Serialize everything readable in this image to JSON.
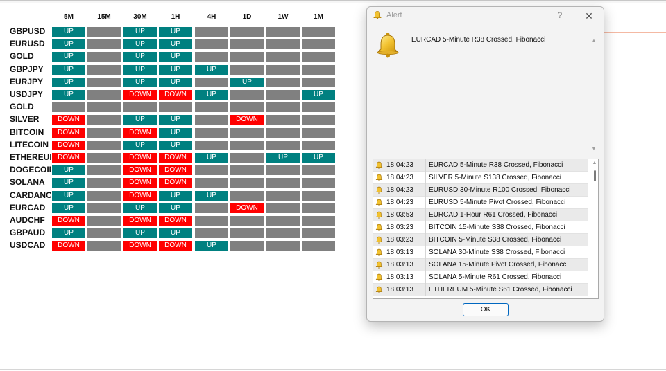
{
  "chart": {
    "timeframes": [
      "5M",
      "15M",
      "30M",
      "1H",
      "4H",
      "1D",
      "1W",
      "1M"
    ],
    "rows": [
      {
        "symbol": "GBPUSD",
        "signals": [
          "UP",
          "",
          "UP",
          "UP",
          "",
          "",
          "",
          ""
        ]
      },
      {
        "symbol": "EURUSD",
        "signals": [
          "UP",
          "",
          "UP",
          "UP",
          "",
          "",
          "",
          ""
        ]
      },
      {
        "symbol": "GOLD",
        "signals": [
          "UP",
          "",
          "UP",
          "UP",
          "",
          "",
          "",
          ""
        ]
      },
      {
        "symbol": "GBPJPY",
        "signals": [
          "UP",
          "",
          "UP",
          "UP",
          "UP",
          "",
          "",
          ""
        ]
      },
      {
        "symbol": "EURJPY",
        "signals": [
          "UP",
          "",
          "UP",
          "UP",
          "",
          "UP",
          "",
          ""
        ]
      },
      {
        "symbol": "USDJPY",
        "signals": [
          "UP",
          "",
          "DOWN",
          "DOWN",
          "UP",
          "",
          "",
          "UP"
        ]
      },
      {
        "symbol": "GOLD",
        "signals": [
          "",
          "",
          "",
          "",
          "",
          "",
          "",
          ""
        ]
      },
      {
        "symbol": "SILVER",
        "signals": [
          "DOWN",
          "",
          "UP",
          "UP",
          "",
          "DOWN",
          "",
          ""
        ]
      },
      {
        "symbol": "BITCOIN",
        "signals": [
          "DOWN",
          "",
          "DOWN",
          "UP",
          "",
          "",
          "",
          ""
        ]
      },
      {
        "symbol": "LITECOIN",
        "signals": [
          "DOWN",
          "",
          "UP",
          "UP",
          "",
          "",
          "",
          ""
        ]
      },
      {
        "symbol": "ETHEREUM",
        "signals": [
          "DOWN",
          "",
          "DOWN",
          "DOWN",
          "UP",
          "",
          "UP",
          "UP"
        ]
      },
      {
        "symbol": "DOGECOIN",
        "signals": [
          "UP",
          "",
          "DOWN",
          "DOWN",
          "",
          "",
          "",
          ""
        ]
      },
      {
        "symbol": "SOLANA",
        "signals": [
          "UP",
          "",
          "DOWN",
          "DOWN",
          "",
          "",
          "",
          ""
        ]
      },
      {
        "symbol": "CARDANO",
        "signals": [
          "UP",
          "",
          "DOWN",
          "UP",
          "UP",
          "",
          "",
          ""
        ]
      },
      {
        "symbol": "EURCAD",
        "signals": [
          "UP",
          "",
          "UP",
          "UP",
          "",
          "DOWN",
          "",
          ""
        ]
      },
      {
        "symbol": "AUDCHF",
        "signals": [
          "DOWN",
          "",
          "DOWN",
          "DOWN",
          "",
          "",
          "",
          ""
        ]
      },
      {
        "symbol": "GBPAUD",
        "signals": [
          "UP",
          "",
          "UP",
          "UP",
          "",
          "",
          "",
          ""
        ]
      },
      {
        "symbol": "USDCAD",
        "signals": [
          "DOWN",
          "",
          "DOWN",
          "DOWN",
          "UP",
          "",
          "",
          ""
        ]
      }
    ],
    "colors": {
      "up": "#008080",
      "down": "#ff0000",
      "neutral": "#808080"
    }
  },
  "alert": {
    "title": "Alert",
    "help_label": "?",
    "close_label": "✕",
    "message": "EURCAD 5-Minute R38 Crossed, Fibonacci",
    "scroll_up_label": "▲",
    "scroll_down_label": "▼",
    "list_scroll_up_label": "▲",
    "ok_label": "OK",
    "icon": "bell-icon",
    "entries": [
      {
        "time": "18:04:23",
        "message": "EURCAD 5-Minute R38 Crossed, Fibonacci"
      },
      {
        "time": "18:04:23",
        "message": "SILVER 5-Minute S138 Crossed, Fibonacci"
      },
      {
        "time": "18:04:23",
        "message": "EURUSD 30-Minute R100 Crossed, Fibonacci"
      },
      {
        "time": "18:04:23",
        "message": "EURUSD 5-Minute Pivot Crossed, Fibonacci"
      },
      {
        "time": "18:03:53",
        "message": "EURCAD 1-Hour R61 Crossed, Fibonacci"
      },
      {
        "time": "18:03:23",
        "message": "BITCOIN 15-Minute S38 Crossed, Fibonacci"
      },
      {
        "time": "18:03:23",
        "message": "BITCOIN 5-Minute S38 Crossed, Fibonacci"
      },
      {
        "time": "18:03:13",
        "message": "SOLANA 30-Minute S38 Crossed, Fibonacci"
      },
      {
        "time": "18:03:13",
        "message": "SOLANA 15-Minute Pivot Crossed, Fibonacci"
      },
      {
        "time": "18:03:13",
        "message": "SOLANA 5-Minute R61 Crossed, Fibonacci"
      },
      {
        "time": "18:03:13",
        "message": "ETHEREUM 5-Minute S61 Crossed, Fibonacci"
      }
    ]
  }
}
